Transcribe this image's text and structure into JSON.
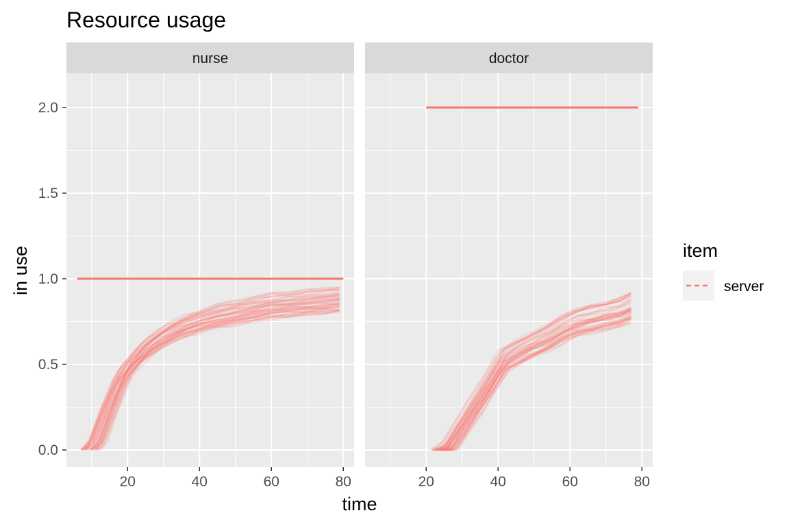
{
  "chart_data": {
    "type": "line",
    "title": "Resource usage",
    "xlabel": "time",
    "ylabel": "in use",
    "xlim": [
      3,
      83
    ],
    "ylim": [
      -0.1,
      2.2
    ],
    "x_ticks": [
      20,
      40,
      60,
      80
    ],
    "y_ticks": [
      0.0,
      0.5,
      1.0,
      1.5,
      2.0
    ],
    "y_tick_labels": [
      "0.0",
      "0.5",
      "1.0",
      "1.5",
      "2.0"
    ],
    "grid": true,
    "legend": {
      "title": "item",
      "entries": [
        "server"
      ],
      "position": "right"
    },
    "colors": {
      "server": "#F8766D",
      "panel_bg": "#EBEBEB",
      "strip_bg": "#D9D9D9",
      "grid": "#FFFFFF"
    },
    "facets": [
      {
        "label": "nurse",
        "capacity": {
          "x": [
            6,
            80
          ],
          "y": [
            1.0,
            1.0
          ]
        },
        "usage_band_center": {
          "x": [
            10,
            12,
            15,
            18,
            20,
            24,
            28,
            32,
            36,
            40,
            45,
            50,
            55,
            60,
            65,
            70,
            75,
            79
          ],
          "y": [
            0.0,
            0.05,
            0.22,
            0.38,
            0.46,
            0.56,
            0.63,
            0.68,
            0.72,
            0.75,
            0.78,
            0.8,
            0.82,
            0.84,
            0.85,
            0.86,
            0.87,
            0.88
          ]
        },
        "usage_band_spread": 0.06
      },
      {
        "label": "doctor",
        "capacity": {
          "x": [
            20,
            79
          ],
          "y": [
            2.0,
            2.0
          ]
        },
        "usage_band_center": {
          "x": [
            24,
            27,
            30,
            34,
            38,
            42,
            46,
            50,
            54,
            58,
            62,
            66,
            70,
            74,
            77
          ],
          "y": [
            0.0,
            0.02,
            0.12,
            0.25,
            0.38,
            0.52,
            0.57,
            0.61,
            0.65,
            0.7,
            0.74,
            0.76,
            0.78,
            0.8,
            0.83
          ]
        },
        "usage_band_spread": 0.07
      }
    ]
  }
}
